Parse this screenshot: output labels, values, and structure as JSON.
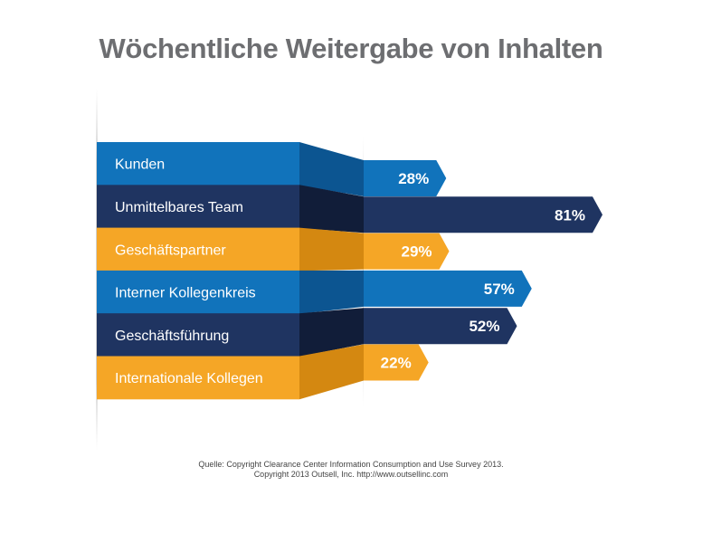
{
  "chart_data": {
    "type": "bar",
    "title": "Wöchentliche Weitergabe von Inhalten",
    "categories": [
      "Kunden",
      "Unmittelbares Team",
      "Geschäftspartner",
      "Interner Kollegenkreis",
      "Geschäftsführung",
      "Internationale Kollegen"
    ],
    "values": [
      28,
      81,
      29,
      57,
      52,
      22
    ],
    "value_labels": [
      "28%",
      "81%",
      "29%",
      "57%",
      "52%",
      "22%"
    ],
    "unit": "%",
    "xlim": [
      0,
      100
    ],
    "colors": {
      "light": "#1173bb",
      "light_dark": "#0c5591",
      "navy": "#1f3461",
      "navy_dark": "#111d39",
      "orange": "#f5a626",
      "orange_dark": "#d48811"
    },
    "bar_color_keys": [
      "light",
      "navy",
      "orange",
      "light",
      "navy",
      "orange"
    ]
  },
  "source": {
    "line1": "Quelle: Copyright Clearance Center Information Consumption and Use Survey 2013.",
    "line2": "Copyright 2013 Outsell, Inc. http://www.outsellinc.com"
  }
}
